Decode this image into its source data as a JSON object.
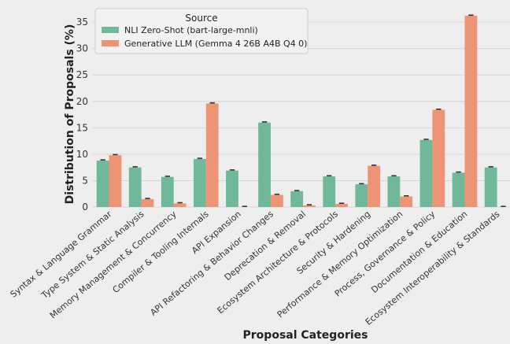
{
  "chart_data": {
    "type": "bar",
    "xlabel": "Proposal Categories",
    "ylabel": "Distribution of Proposals (%)",
    "ylim": [
      0,
      38
    ],
    "yticks": [
      0,
      5,
      10,
      15,
      20,
      25,
      30,
      35
    ],
    "grid": true,
    "legend": {
      "title": "Source",
      "placement": "top-left"
    },
    "categories": [
      "Syntax & Language Grammar",
      "Type System & Static Analysis",
      "Memory Management & Concurrency",
      "Compiler & Tooling Internals",
      "API Expansion",
      "API Refactoring & Behavior Changes",
      "Deprecation & Removal",
      "Ecosystem Architecture & Protocols",
      "Security & Hardening",
      "Performance & Memory Optimization",
      "Process, Governance & Policy",
      "Documentation & Education",
      "Ecosystem Interoperability & Standards"
    ],
    "series": [
      {
        "name": "NLI Zero-Shot (bart-large-mnli)",
        "color": "#6fb89a",
        "values": [
          8.8,
          7.5,
          5.7,
          9.1,
          6.9,
          16.0,
          3.0,
          5.8,
          4.3,
          5.8,
          12.7,
          6.5,
          7.5
        ]
      },
      {
        "name": "Generative LLM (Gemma 4 26B A4B Q4 0)",
        "color": "#ec9473",
        "values": [
          9.8,
          1.5,
          0.7,
          19.6,
          0.0,
          2.3,
          0.3,
          0.6,
          7.8,
          2.0,
          18.4,
          36.2,
          0.0
        ]
      }
    ]
  }
}
